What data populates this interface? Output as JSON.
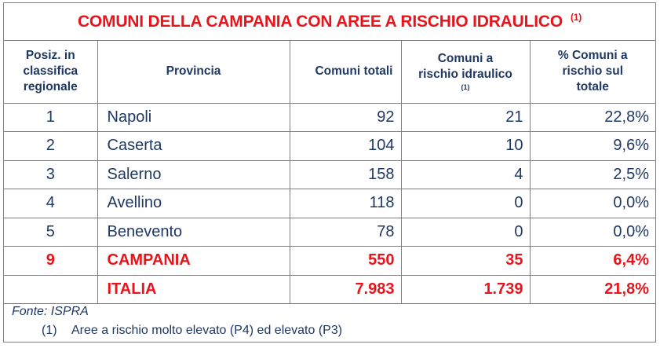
{
  "title": {
    "text": "COMUNI DELLA CAMPANIA CON AREE A RISCHIO IDRAULICO",
    "note": "(1)"
  },
  "headers": {
    "position": [
      "Posiz. in",
      "classifica",
      "regionale"
    ],
    "province": "Provincia",
    "total": "Comuni totali",
    "risk": [
      "Comuni a",
      "rischio idraulico"
    ],
    "risk_note": "(1)",
    "percent": [
      "% Comuni a",
      "rischio sul",
      "totale"
    ]
  },
  "rows": [
    {
      "pos": "1",
      "province": "Napoli",
      "total": "92",
      "risk": "21",
      "percent": "22,8%"
    },
    {
      "pos": "2",
      "province": "Caserta",
      "total": "104",
      "risk": "10",
      "percent": "9,6%"
    },
    {
      "pos": "3",
      "province": "Salerno",
      "total": "158",
      "risk": "4",
      "percent": "2,5%"
    },
    {
      "pos": "4",
      "province": "Avellino",
      "total": "118",
      "risk": "0",
      "percent": "0,0%"
    },
    {
      "pos": "5",
      "province": "Benevento",
      "total": "78",
      "risk": "0",
      "percent": "0,0%"
    },
    {
      "pos": "9",
      "province": "CAMPANIA",
      "total": "550",
      "risk": "35",
      "percent": "6,4%"
    },
    {
      "pos": "",
      "province": "ITALIA",
      "total": "7.983",
      "risk": "1.739",
      "percent": "21,8%"
    }
  ],
  "footer": {
    "source": "Fonte: ISPRA",
    "note_mark": "(1)",
    "note_text": "Aree a rischio molto elevato (P4) ed elevato (P3)"
  },
  "colors": {
    "accent": "#e8141c",
    "text": "#1f3864",
    "border": "#7f7f7f"
  }
}
